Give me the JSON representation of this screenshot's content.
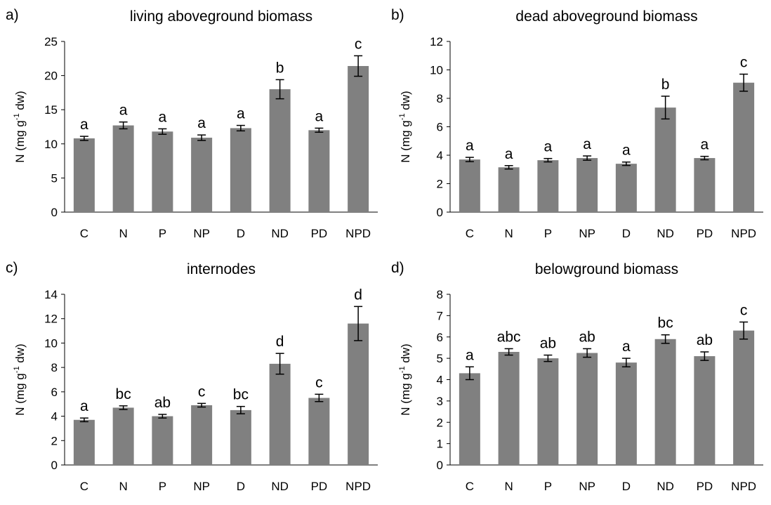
{
  "chart_data": [
    {
      "type": "bar",
      "panel_label": "a)",
      "title": "living aboveground biomass",
      "ylabel": "N (mg g-1 dw)",
      "ylabel_parts": {
        "base": "N (mg g",
        "sup": "-1",
        "tail": " dw)"
      },
      "ylim": [
        0,
        25
      ],
      "yticks": [
        0,
        5,
        10,
        15,
        20,
        25
      ],
      "categories": [
        "C",
        "N",
        "P",
        "NP",
        "D",
        "ND",
        "PD",
        "NPD"
      ],
      "values": [
        10.8,
        12.7,
        11.8,
        10.9,
        12.3,
        18.0,
        12.0,
        21.4
      ],
      "errors": [
        0.3,
        0.5,
        0.4,
        0.4,
        0.4,
        1.4,
        0.3,
        1.5
      ],
      "letters": [
        "a",
        "a",
        "a",
        "a",
        "a",
        "b",
        "a",
        "c"
      ],
      "bar_color": "#808080"
    },
    {
      "type": "bar",
      "panel_label": "b)",
      "title": "dead aboveground biomass",
      "ylabel": "N (mg g-1 dw)",
      "ylabel_parts": {
        "base": "N (mg g",
        "sup": "-1",
        "tail": " dw)"
      },
      "ylim": [
        0,
        12
      ],
      "yticks": [
        0,
        2,
        4,
        6,
        8,
        10,
        12
      ],
      "categories": [
        "C",
        "N",
        "P",
        "NP",
        "D",
        "ND",
        "PD",
        "NPD"
      ],
      "values": [
        3.7,
        3.15,
        3.65,
        3.8,
        3.4,
        7.35,
        3.8,
        9.1
      ],
      "errors": [
        0.15,
        0.12,
        0.12,
        0.15,
        0.12,
        0.8,
        0.12,
        0.6
      ],
      "letters": [
        "a",
        "a",
        "a",
        "a",
        "a",
        "b",
        "a",
        "c"
      ],
      "bar_color": "#808080"
    },
    {
      "type": "bar",
      "panel_label": "c)",
      "title": "internodes",
      "ylabel": "N (mg g-1 dw)",
      "ylabel_parts": {
        "base": "N (mg g",
        "sup": "-1",
        "tail": " dw)"
      },
      "ylim": [
        0,
        14
      ],
      "yticks": [
        0,
        2,
        4,
        6,
        8,
        10,
        12,
        14
      ],
      "categories": [
        "C",
        "N",
        "P",
        "NP",
        "D",
        "ND",
        "PD",
        "NPD"
      ],
      "values": [
        3.7,
        4.7,
        4.0,
        4.9,
        4.5,
        8.3,
        5.5,
        11.6
      ],
      "errors": [
        0.15,
        0.15,
        0.15,
        0.15,
        0.3,
        0.85,
        0.3,
        1.4
      ],
      "letters": [
        "a",
        "bc",
        "ab",
        "c",
        "bc",
        "d",
        "c",
        "d"
      ],
      "bar_color": "#808080"
    },
    {
      "type": "bar",
      "panel_label": "d)",
      "title": "belowground biomass",
      "ylabel": "N (mg g-1 dw)",
      "ylabel_parts": {
        "base": "N (mg g",
        "sup": "-1",
        "tail": " dw)"
      },
      "ylim": [
        0,
        8
      ],
      "yticks": [
        0,
        1,
        2,
        3,
        4,
        5,
        6,
        7,
        8
      ],
      "categories": [
        "C",
        "N",
        "P",
        "NP",
        "D",
        "ND",
        "PD",
        "NPD"
      ],
      "values": [
        4.3,
        5.3,
        5.0,
        5.25,
        4.8,
        5.9,
        5.1,
        6.3
      ],
      "errors": [
        0.3,
        0.15,
        0.15,
        0.2,
        0.2,
        0.2,
        0.2,
        0.4
      ],
      "letters": [
        "a",
        "abc",
        "ab",
        "ab",
        "a",
        "bc",
        "ab",
        "c"
      ],
      "bar_color": "#808080"
    }
  ]
}
